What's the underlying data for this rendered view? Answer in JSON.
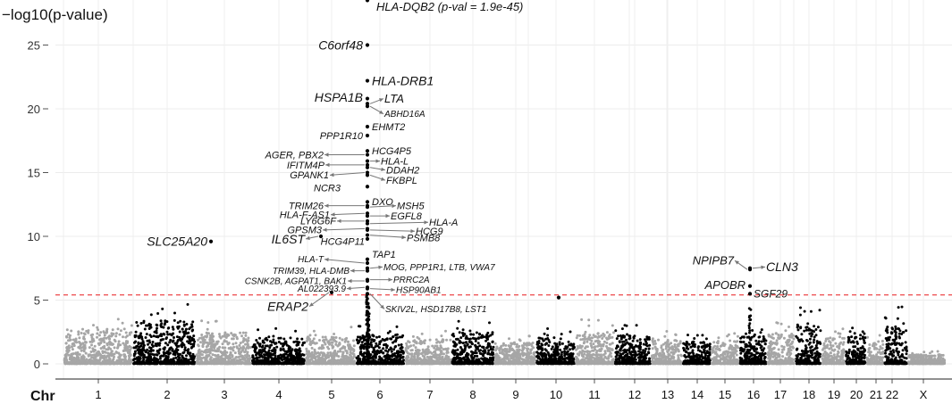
{
  "chart_data": {
    "type": "scatter",
    "subtype": "manhattan",
    "ylabel": "−log10(p-value)",
    "xlabel": "Chr",
    "ylim": [
      0,
      27
    ],
    "yticks": [
      0,
      5,
      10,
      15,
      20,
      25
    ],
    "significance_threshold": 5.4,
    "colors": {
      "odd": "#a6a6a6",
      "even": "#000000",
      "threshold": "#e8191b",
      "arrow": "#777777"
    },
    "chromosomes": [
      {
        "label": "1",
        "pos": 110,
        "max": 3.8
      },
      {
        "label": "2",
        "pos": 187,
        "max": 4.7
      },
      {
        "label": "3",
        "pos": 251,
        "max": 3.4
      },
      {
        "label": "4",
        "pos": 312,
        "max": 2.8
      },
      {
        "label": "5",
        "pos": 371,
        "max": 2.9
      },
      {
        "label": "6",
        "pos": 425,
        "max": 3.2
      },
      {
        "label": "7",
        "pos": 481,
        "max": 2.7
      },
      {
        "label": "8",
        "pos": 529,
        "max": 3.4
      },
      {
        "label": "9",
        "pos": 577,
        "max": 2.3
      },
      {
        "label": "10",
        "pos": 622,
        "max": 2.9
      },
      {
        "label": "11",
        "pos": 665,
        "max": 3.5
      },
      {
        "label": "12",
        "pos": 710,
        "max": 3.3
      },
      {
        "label": "13",
        "pos": 747,
        "max": 2.6
      },
      {
        "label": "14",
        "pos": 780,
        "max": 2.4
      },
      {
        "label": "15",
        "pos": 811,
        "max": 2.5
      },
      {
        "label": "16",
        "pos": 843,
        "max": 3.0
      },
      {
        "label": "17",
        "pos": 873,
        "max": 3.3
      },
      {
        "label": "18",
        "pos": 905,
        "max": 4.5
      },
      {
        "label": "19",
        "pos": 933,
        "max": 2.8
      },
      {
        "label": "20",
        "pos": 958,
        "max": 3.1
      },
      {
        "label": "21",
        "pos": 980,
        "max": 2.3
      },
      {
        "label": "22",
        "pos": 998,
        "max": 4.5
      },
      {
        "label": "X",
        "pos": 1033,
        "max": 1.0
      }
    ],
    "x_gridlines": [
      71,
      149,
      344,
      591,
      704,
      746,
      888,
      1017
    ],
    "hits": [
      {
        "chr": "6",
        "pos": 411,
        "y": 28.5,
        "label": "HLA-DQB2 (p-val = 1.9e-45)",
        "tx": 421,
        "ty": 28.0,
        "size": 13,
        "anchor": "start",
        "arrow": false
      },
      {
        "chr": "6",
        "pos": 411,
        "y": 25.0,
        "label": "C6orf48",
        "tx": 406,
        "ty": 25.0,
        "size": 14,
        "anchor": "end",
        "arrow": false
      },
      {
        "chr": "6",
        "pos": 411,
        "y": 22.2,
        "label": "HLA-DRB1",
        "tx": 416,
        "ty": 22.2,
        "size": 14,
        "anchor": "start",
        "arrow": false
      },
      {
        "chr": "6",
        "pos": 411,
        "y": 20.8,
        "label": "HSPA1B",
        "tx": 406,
        "ty": 20.9,
        "size": 14,
        "anchor": "end",
        "arrow": false
      },
      {
        "chr": "6",
        "pos": 411,
        "y": 20.4,
        "label": "LTA",
        "tx": 430,
        "ty": 20.8,
        "size": 13,
        "anchor": "start",
        "arrow": true
      },
      {
        "chr": "6",
        "pos": 411,
        "y": 20.2,
        "label": "ABHD16A",
        "tx": 430,
        "ty": 19.6,
        "size": 10,
        "anchor": "start",
        "arrow": true
      },
      {
        "chr": "6",
        "pos": 411,
        "y": 18.6,
        "label": "EHMT2",
        "tx": 416,
        "ty": 18.6,
        "size": 11,
        "anchor": "start",
        "arrow": false
      },
      {
        "chr": "6",
        "pos": 411,
        "y": 17.9,
        "label": "PPP1R10",
        "tx": 406,
        "ty": 17.9,
        "size": 11,
        "anchor": "end",
        "arrow": false
      },
      {
        "chr": "6",
        "pos": 411,
        "y": 16.7,
        "label": "HCG4P5",
        "tx": 416,
        "ty": 16.7,
        "size": 11,
        "anchor": "start",
        "arrow": false
      },
      {
        "chr": "6",
        "pos": 411,
        "y": 16.4,
        "label": "AGER, PBX2",
        "tx": 362,
        "ty": 16.4,
        "size": 11,
        "anchor": "end",
        "arrow": true
      },
      {
        "chr": "6",
        "pos": 411,
        "y": 15.9,
        "label": "HLA-L",
        "tx": 426,
        "ty": 15.9,
        "size": 11,
        "anchor": "start",
        "arrow": true
      },
      {
        "chr": "6",
        "pos": 411,
        "y": 15.6,
        "label": "IFITM4P",
        "tx": 363,
        "ty": 15.6,
        "size": 11,
        "anchor": "end",
        "arrow": true
      },
      {
        "chr": "6",
        "pos": 411,
        "y": 15.4,
        "label": "DDAH2",
        "tx": 432,
        "ty": 15.2,
        "size": 11,
        "anchor": "start",
        "arrow": true
      },
      {
        "chr": "6",
        "pos": 411,
        "y": 15.0,
        "label": "GPANK1",
        "tx": 368,
        "ty": 14.8,
        "size": 11,
        "anchor": "end",
        "arrow": true
      },
      {
        "chr": "6",
        "pos": 411,
        "y": 14.8,
        "label": "FKBPL",
        "tx": 432,
        "ty": 14.4,
        "size": 11,
        "anchor": "start",
        "arrow": true
      },
      {
        "chr": "6",
        "pos": 411,
        "y": 13.9,
        "label": "NCR3",
        "tx": 381,
        "ty": 13.8,
        "size": 11,
        "anchor": "end",
        "arrow": false
      },
      {
        "chr": "6",
        "pos": 411,
        "y": 12.7,
        "label": "DXO",
        "tx": 416,
        "ty": 12.7,
        "size": 11,
        "anchor": "start",
        "arrow": false
      },
      {
        "chr": "6",
        "pos": 411,
        "y": 12.4,
        "label": "TRIM26",
        "tx": 362,
        "ty": 12.4,
        "size": 11,
        "anchor": "end",
        "arrow": true
      },
      {
        "chr": "6",
        "pos": 411,
        "y": 12.3,
        "label": "MSH5",
        "tx": 444,
        "ty": 12.4,
        "size": 11,
        "anchor": "start",
        "arrow": true
      },
      {
        "chr": "6",
        "pos": 411,
        "y": 11.8,
        "label": "HLA-F-AS1",
        "tx": 369,
        "ty": 11.7,
        "size": 11,
        "anchor": "end",
        "arrow": true
      },
      {
        "chr": "6",
        "pos": 411,
        "y": 11.6,
        "label": "EGFL8",
        "tx": 437,
        "ty": 11.6,
        "size": 11,
        "anchor": "start",
        "arrow": true
      },
      {
        "chr": "6",
        "pos": 411,
        "y": 11.2,
        "label": "LY6G6F",
        "tx": 376,
        "ty": 11.2,
        "size": 11,
        "anchor": "end",
        "arrow": true
      },
      {
        "chr": "6",
        "pos": 411,
        "y": 11.0,
        "label": "HLA-A",
        "tx": 480,
        "ty": 11.1,
        "size": 11,
        "anchor": "start",
        "arrow": true
      },
      {
        "chr": "6",
        "pos": 411,
        "y": 10.6,
        "label": "GPSM3",
        "tx": 360,
        "ty": 10.5,
        "size": 11,
        "anchor": "end",
        "arrow": true
      },
      {
        "chr": "6",
        "pos": 411,
        "y": 10.5,
        "label": "HCG9",
        "tx": 465,
        "ty": 10.4,
        "size": 11,
        "anchor": "start",
        "arrow": true
      },
      {
        "chr": "6",
        "pos": 411,
        "y": 10.1,
        "label": "PSMB8",
        "tx": 455,
        "ty": 9.9,
        "size": 11,
        "anchor": "start",
        "arrow": true
      },
      {
        "chr": "6",
        "pos": 411,
        "y": 9.8,
        "label": "HCG4P11",
        "tx": 408,
        "ty": 9.6,
        "size": 11,
        "anchor": "end",
        "arrow": false
      },
      {
        "chr": "5",
        "pos": 359,
        "y": 10.0,
        "label": "IL6ST",
        "tx": 341,
        "ty": 9.8,
        "size": 14,
        "anchor": "end",
        "arrow": true
      },
      {
        "chr": "3",
        "pos": 236,
        "y": 9.6,
        "label": "SLC25A20",
        "tx": 232,
        "ty": 9.6,
        "size": 14,
        "anchor": "end",
        "arrow": false
      },
      {
        "chr": "6",
        "pos": 411,
        "y": 8.2,
        "label": "TAP1",
        "tx": 416,
        "ty": 8.6,
        "size": 11,
        "anchor": "start",
        "arrow": false
      },
      {
        "chr": "6",
        "pos": 411,
        "y": 7.9,
        "label": "HLA-T",
        "tx": 362,
        "ty": 8.2,
        "size": 10,
        "anchor": "end",
        "arrow": true
      },
      {
        "chr": "6",
        "pos": 411,
        "y": 7.5,
        "label": "MOG, PPP1R1, LTB, VWA7",
        "tx": 429,
        "ty": 7.6,
        "size": 10,
        "anchor": "start",
        "arrow": true
      },
      {
        "chr": "6",
        "pos": 411,
        "y": 7.3,
        "label": "TRIM39, HLA-DMB",
        "tx": 391,
        "ty": 7.3,
        "size": 10,
        "anchor": "end",
        "arrow": true
      },
      {
        "chr": "6",
        "pos": 411,
        "y": 6.6,
        "label": "PRRC2A",
        "tx": 440,
        "ty": 6.6,
        "size": 10,
        "anchor": "start",
        "arrow": true
      },
      {
        "chr": "6",
        "pos": 411,
        "y": 6.5,
        "label": "CSNK2B, AGPAT1, BAK1",
        "tx": 388,
        "ty": 6.5,
        "size": 10,
        "anchor": "end",
        "arrow": true
      },
      {
        "chr": "6",
        "pos": 411,
        "y": 6.0,
        "label": "AL022393.9",
        "tx": 387,
        "ty": 5.9,
        "size": 10,
        "anchor": "end",
        "arrow": true
      },
      {
        "chr": "6",
        "pos": 411,
        "y": 5.9,
        "label": "HSP90AB1",
        "tx": 443,
        "ty": 5.8,
        "size": 10,
        "anchor": "start",
        "arrow": true
      },
      {
        "chr": "5",
        "pos": 371,
        "y": 5.6,
        "label": "ERAP2",
        "tx": 345,
        "ty": 4.5,
        "size": 14,
        "anchor": "end",
        "arrow": true
      },
      {
        "chr": "6",
        "pos": 411,
        "y": 5.5,
        "label": "SKIV2L, HSD17B8, LST1",
        "tx": 431,
        "ty": 4.3,
        "size": 10,
        "anchor": "start",
        "arrow": true
      },
      {
        "chr": "10",
        "pos": 625,
        "y": 5.2,
        "label": "",
        "tx": 0,
        "ty": 0,
        "size": 0,
        "anchor": "start",
        "arrow": false
      },
      {
        "chr": "16",
        "pos": 839,
        "y": 7.4,
        "label": "NPIPB7",
        "tx": 821,
        "ty": 8.1,
        "size": 13,
        "anchor": "end",
        "arrow": true
      },
      {
        "chr": "16",
        "pos": 839,
        "y": 7.5,
        "label": "CLN3",
        "tx": 857,
        "ty": 7.6,
        "size": 14,
        "anchor": "start",
        "arrow": true
      },
      {
        "chr": "16",
        "pos": 839,
        "y": 6.1,
        "label": "APOBR",
        "tx": 834,
        "ty": 6.2,
        "size": 13,
        "anchor": "end",
        "arrow": false
      },
      {
        "chr": "16",
        "pos": 839,
        "y": 5.5,
        "label": "SGF29",
        "tx": 843,
        "ty": 5.5,
        "size": 12,
        "anchor": "start",
        "arrow": false
      }
    ]
  }
}
